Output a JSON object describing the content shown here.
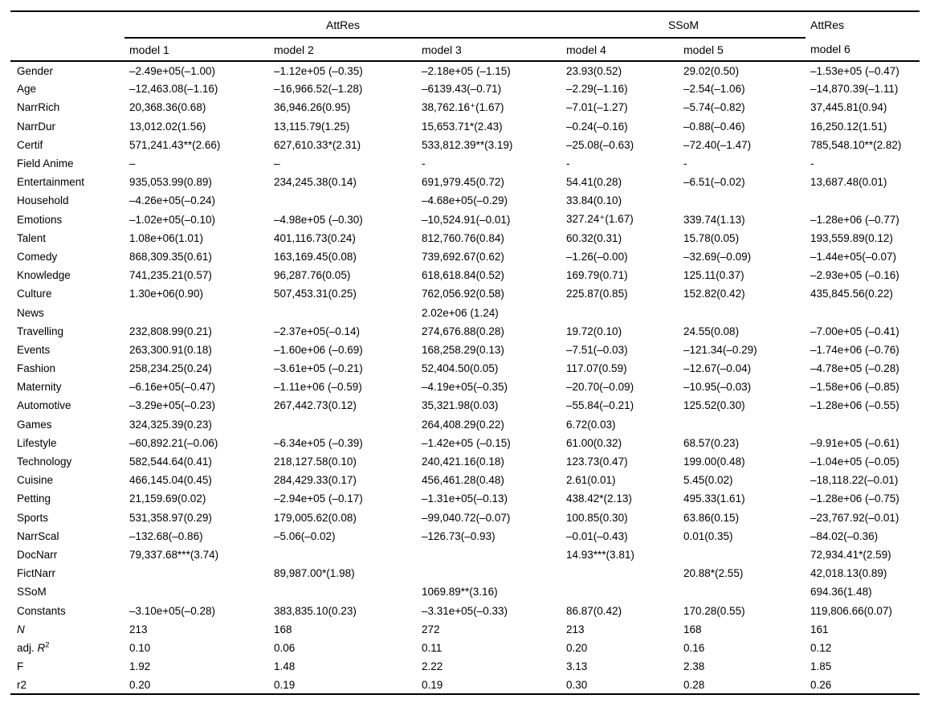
{
  "table": {
    "spanners": [
      {
        "label": "AttRes",
        "span": 3
      },
      {
        "label": "SSoM",
        "span": 2
      },
      {
        "label": "AttRes",
        "span": 1
      }
    ],
    "columns": [
      "model 1",
      "model 2",
      "model 3",
      "model 4",
      "model 5",
      "model 6"
    ],
    "rows": [
      {
        "label": "Gender",
        "cells": [
          "–2.49e+05(–1.00)",
          "–1.12e+05 (–0.35)",
          "–2.18e+05 (–1.15)",
          "23.93(0.52)",
          "29.02(0.50)",
          "–1.53e+05 (–0.47)"
        ]
      },
      {
        "label": "Age",
        "cells": [
          "–12,463.08(–1.16)",
          "–16,966.52(–1.28)",
          "–6139.43(–0.71)",
          "–2.29(–1.16)",
          "–2.54(–1.06)",
          "–14,870.39(–1.11)"
        ]
      },
      {
        "label": "NarrRich",
        "cells": [
          "20,368.36(0.68)",
          "36,946.26(0.95)",
          "38,762.16⁺(1.67)",
          "–7.01(–1.27)",
          "–5.74(–0.82)",
          "37,445.81(0.94)"
        ]
      },
      {
        "label": "NarrDur",
        "cells": [
          "13,012.02(1.56)",
          "13,115.79(1.25)",
          "15,653.71*(2.43)",
          "–0.24(–0.16)",
          "–0.88(–0.46)",
          "16,250.12(1.51)"
        ]
      },
      {
        "label": "Certif",
        "cells": [
          "571,241.43**(2.66)",
          "627,610.33*(2.31)",
          "533,812.39**(3.19)",
          "–25.08(–0.63)",
          "–72.40(–1.47)",
          "785,548.10**(2.82)"
        ]
      },
      {
        "label": "Field Anime",
        "cells": [
          "–",
          "–",
          "-",
          "-",
          "-",
          "-"
        ]
      },
      {
        "label": "Entertainment",
        "cells": [
          "935,053.99(0.89)",
          "234,245.38(0.14)",
          "691,979.45(0.72)",
          "54.41(0.28)",
          "–6.51(–0.02)",
          "13,687.48(0.01)"
        ]
      },
      {
        "label": "Household",
        "cells": [
          "–4.26e+05(–0.24)",
          "",
          "–4.68e+05(–0.29)",
          "33.84(0.10)",
          "",
          ""
        ]
      },
      {
        "label": "Emotions",
        "cells": [
          "–1.02e+05(–0.10)",
          "–4.98e+05 (–0.30)",
          "–10,524.91(–0.01)",
          "327.24⁺(1.67)",
          "339.74(1.13)",
          "–1.28e+06 (–0.77)"
        ]
      },
      {
        "label": "Talent",
        "cells": [
          "1.08e+06(1.01)",
          "401,116.73(0.24)",
          "812,760.76(0.84)",
          "60.32(0.31)",
          "15.78(0.05)",
          "193,559.89(0.12)"
        ]
      },
      {
        "label": "Comedy",
        "cells": [
          "868,309.35(0.61)",
          "163,169.45(0.08)",
          "739,692.67(0.62)",
          "–1.26(–0.00)",
          "–32.69(–0.09)",
          "–1.44e+05(–0.07)"
        ]
      },
      {
        "label": "Knowledge",
        "cells": [
          "741,235.21(0.57)",
          "96,287.76(0.05)",
          "618,618.84(0.52)",
          "169.79(0.71)",
          "125.11(0.37)",
          "–2.93e+05 (–0.16)"
        ]
      },
      {
        "label": "Culture",
        "cells": [
          "1.30e+06(0.90)",
          "507,453.31(0.25)",
          "762,056.92(0.58)",
          "225.87(0.85)",
          "152.82(0.42)",
          "435,845.56(0.22)"
        ]
      },
      {
        "label": "News",
        "cells": [
          "",
          "",
          "2.02e+06 (1.24)",
          "",
          "",
          ""
        ]
      },
      {
        "label": "Travelling",
        "cells": [
          "232,808.99(0.21)",
          "–2.37e+05(–0.14)",
          "274,676.88(0.28)",
          "19.72(0.10)",
          "24.55(0.08)",
          "–7.00e+05 (–0.41)"
        ]
      },
      {
        "label": "Events",
        "cells": [
          "263,300.91(0.18)",
          "–1.60e+06 (–0.69)",
          "168,258.29(0.13)",
          "–7.51(–0.03)",
          "–121.34(–0.29)",
          "–1.74e+06 (–0.76)"
        ]
      },
      {
        "label": "Fashion",
        "cells": [
          "258,234.25(0.24)",
          "–3.61e+05 (–0.21)",
          "52,404.50(0.05)",
          "117.07(0.59)",
          "–12.67(–0.04)",
          "–4.78e+05 (–0.28)"
        ]
      },
      {
        "label": "Maternity",
        "cells": [
          "–6.16e+05(–0.47)",
          "–1.11e+06 (–0.59)",
          "–4.19e+05(–0.35)",
          "–20.70(–0.09)",
          "–10.95(–0.03)",
          "–1.58e+06 (–0.85)"
        ]
      },
      {
        "label": "Automotive",
        "cells": [
          "–3.29e+05(–0.23)",
          "267,442.73(0.12)",
          "35,321.98(0.03)",
          "–55.84(–0.21)",
          "125.52(0.30)",
          "–1.28e+06 (–0.55)"
        ]
      },
      {
        "label": "Games",
        "cells": [
          "324,325.39(0.23)",
          "",
          "264,408.29(0.22)",
          "6.72(0.03)",
          "",
          ""
        ]
      },
      {
        "label": "Lifestyle",
        "cells": [
          "–60,892.21(–0.06)",
          "–6.34e+05 (–0.39)",
          "–1.42e+05 (–0.15)",
          "61.00(0.32)",
          "68.57(0.23)",
          "–9.91e+05 (–0.61)"
        ]
      },
      {
        "label": "Technology",
        "cells": [
          "582,544.64(0.41)",
          "218,127.58(0.10)",
          "240,421.16(0.18)",
          "123.73(0.47)",
          "199.00(0.48)",
          "–1.04e+05 (–0.05)"
        ]
      },
      {
        "label": "Cuisine",
        "cells": [
          "466,145.04(0.45)",
          "284,429.33(0.17)",
          "456,461.28(0.48)",
          "2.61(0.01)",
          "5.45(0.02)",
          "–18,118.22(–0.01)"
        ]
      },
      {
        "label": "Petting",
        "cells": [
          "21,159.69(0.02)",
          "–2.94e+05 (–0.17)",
          "–1.31e+05(–0.13)",
          "438.42*(2.13)",
          "495.33(1.61)",
          "–1.28e+06 (–0.75)"
        ]
      },
      {
        "label": "Sports",
        "cells": [
          "531,358.97(0.29)",
          "179,005.62(0.08)",
          "–99,040.72(–0.07)",
          "100.85(0.30)",
          "63.86(0.15)",
          "–23,767.92(–0.01)"
        ]
      },
      {
        "label": "NarrScal",
        "cells": [
          "–132.68(–0.86)",
          "–5.06(–0.02)",
          "–126.73(–0.93)",
          "–0.01(–0.43)",
          "0.01(0.35)",
          "–84.02(–0.36)"
        ]
      },
      {
        "label": "DocNarr",
        "cells": [
          "79,337.68***(3.74)",
          "",
          "",
          "14.93***(3.81)",
          "",
          "72,934.41*(2.59)"
        ]
      },
      {
        "label": "FictNarr",
        "cells": [
          "",
          "89,987.00*(1.98)",
          "",
          "",
          "20.88*(2.55)",
          "42,018.13(0.89)"
        ]
      },
      {
        "label": "SSoM",
        "cells": [
          "",
          "",
          "1069.89**(3.16)",
          "",
          "",
          "694.36(1.48)"
        ]
      },
      {
        "label": "Constants",
        "cells": [
          "–3.10e+05(–0.28)",
          "383,835.10(0.23)",
          "–3.31e+05(–0.33)",
          "86.87(0.42)",
          "170.28(0.55)",
          "119,806.66(0.07)"
        ]
      },
      {
        "label": "N",
        "italic": true,
        "cells": [
          "213",
          "168",
          "272",
          "213",
          "168",
          "161"
        ]
      },
      {
        "label_parts": [
          {
            "t": "adj. "
          },
          {
            "t": "R",
            "style": "italic"
          },
          {
            "t": "2",
            "style": "sup"
          }
        ],
        "cells": [
          "0.10",
          "0.06",
          "0.11",
          "0.20",
          "0.16",
          "0.12"
        ]
      },
      {
        "label": "F",
        "cells": [
          "1.92",
          "1.48",
          "2.22",
          "3.13",
          "2.38",
          "1.85"
        ]
      },
      {
        "label": "r2",
        "cells": [
          "0.20",
          "0.19",
          "0.19",
          "0.30",
          "0.28",
          "0.26"
        ]
      }
    ]
  }
}
